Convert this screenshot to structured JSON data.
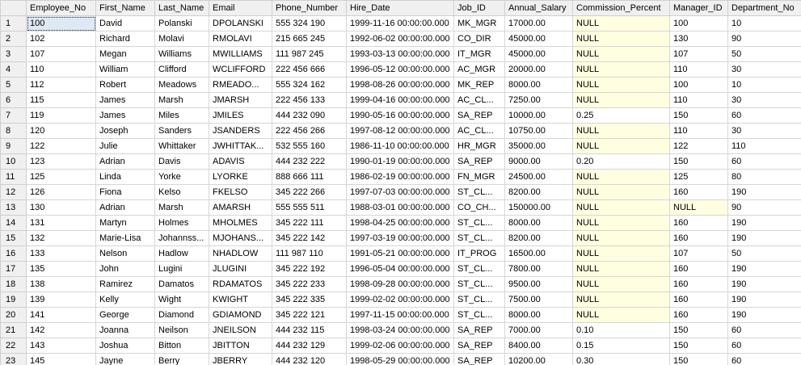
{
  "columns": [
    "Employee_No",
    "First_Name",
    "Last_Name",
    "Email",
    "Phone_Number",
    "Hire_Date",
    "Job_ID",
    "Annual_Salary",
    "Commission_Percent",
    "Manager_ID",
    "Department_No"
  ],
  "null_color": "#fffee0",
  "rows": [
    [
      "1",
      "100",
      "David",
      "Polanski",
      "DPOLANSKI",
      "555 324 190",
      "1999-11-16 00:00:00.000",
      "MK_MGR",
      "17000.00",
      "NULL",
      "100",
      "10"
    ],
    [
      "2",
      "102",
      "Richard",
      "Molavi",
      "RMOLAVI",
      "215 665 245",
      "1992-06-02 00:00:00.000",
      "CO_DIR",
      "45000.00",
      "NULL",
      "130",
      "90"
    ],
    [
      "3",
      "107",
      "Megan",
      "Williams",
      "MWILLIAMS",
      "111 987 245",
      "1993-03-13 00:00:00.000",
      "IT_MGR",
      "45000.00",
      "NULL",
      "107",
      "50"
    ],
    [
      "4",
      "110",
      "William",
      "Clifford",
      "WCLIFFORD",
      "222 456 666",
      "1996-05-12 00:00:00.000",
      "AC_MGR",
      "20000.00",
      "NULL",
      "110",
      "30"
    ],
    [
      "5",
      "112",
      "Robert",
      "Meadows",
      "RMEADO...",
      "555 324 162",
      "1998-08-26 00:00:00.000",
      "MK_REP",
      "8000.00",
      "NULL",
      "100",
      "10"
    ],
    [
      "6",
      "115",
      "James",
      "Marsh",
      "JMARSH",
      "222 456 133",
      "1999-04-16 00:00:00.000",
      "AC_CL...",
      "7250.00",
      "NULL",
      "110",
      "30"
    ],
    [
      "7",
      "119",
      "James",
      "Miles",
      "JMILES",
      "444 232 090",
      "1990-05-16 00:00:00.000",
      "SA_REP",
      "10000.00",
      "0.25",
      "150",
      "60"
    ],
    [
      "8",
      "120",
      "Joseph",
      "Sanders",
      "JSANDERS",
      "222 456 266",
      "1997-08-12 00:00:00.000",
      "AC_CL...",
      "10750.00",
      "NULL",
      "110",
      "30"
    ],
    [
      "9",
      "122",
      "Julie",
      "Whittaker",
      "JWHITTAK...",
      "532 555 160",
      "1986-11-10 00:00:00.000",
      "HR_MGR",
      "35000.00",
      "NULL",
      "122",
      "110"
    ],
    [
      "10",
      "123",
      "Adrian",
      "Davis",
      "ADAVIS",
      "444 232 222",
      "1990-01-19 00:00:00.000",
      "SA_REP",
      "9000.00",
      "0.20",
      "150",
      "60"
    ],
    [
      "11",
      "125",
      "Linda",
      "Yorke",
      "LYORKE",
      "888 666 111",
      "1986-02-19 00:00:00.000",
      "FN_MGR",
      "24500.00",
      "NULL",
      "125",
      "80"
    ],
    [
      "12",
      "126",
      "Fiona",
      "Kelso",
      "FKELSO",
      "345 222 266",
      "1997-07-03 00:00:00.000",
      "ST_CL...",
      "8200.00",
      "NULL",
      "160",
      "190"
    ],
    [
      "13",
      "130",
      "Adrian",
      "Marsh",
      "AMARSH",
      "555 555 511",
      "1988-03-01 00:00:00.000",
      "CO_CH...",
      "150000.00",
      "NULL",
      "NULL",
      "90"
    ],
    [
      "14",
      "131",
      "Martyn",
      "Holmes",
      "MHOLMES",
      "345 222 111",
      "1998-04-25 00:00:00.000",
      "ST_CL...",
      "8000.00",
      "NULL",
      "160",
      "190"
    ],
    [
      "15",
      "132",
      "Marie-Lisa",
      "Johannss...",
      "MJOHANS...",
      "345 222 142",
      "1997-03-19 00:00:00.000",
      "ST_CL...",
      "8200.00",
      "NULL",
      "160",
      "190"
    ],
    [
      "16",
      "133",
      "Nelson",
      "Hadlow",
      "NHADLOW",
      "111 987 110",
      "1991-05-21 00:00:00.000",
      "IT_PROG",
      "16500.00",
      "NULL",
      "107",
      "50"
    ],
    [
      "17",
      "135",
      "John",
      "Lugini",
      "JLUGINI",
      "345 222 192",
      "1996-05-04 00:00:00.000",
      "ST_CL...",
      "7800.00",
      "NULL",
      "160",
      "190"
    ],
    [
      "18",
      "138",
      "Ramirez",
      "Damatos",
      "RDAMATOS",
      "345 222 233",
      "1998-09-28 00:00:00.000",
      "ST_CL...",
      "9500.00",
      "NULL",
      "160",
      "190"
    ],
    [
      "19",
      "139",
      "Kelly",
      "Wight",
      "KWIGHT",
      "345 222 335",
      "1999-02-02 00:00:00.000",
      "ST_CL...",
      "7500.00",
      "NULL",
      "160",
      "190"
    ],
    [
      "20",
      "141",
      "George",
      "Diamond",
      "GDIAMOND",
      "345 222 121",
      "1997-11-15 00:00:00.000",
      "ST_CL...",
      "8000.00",
      "NULL",
      "160",
      "190"
    ],
    [
      "21",
      "142",
      "Joanna",
      "Neilson",
      "JNEILSON",
      "444 232 115",
      "1998-03-24 00:00:00.000",
      "SA_REP",
      "7000.00",
      "0.10",
      "150",
      "60"
    ],
    [
      "22",
      "143",
      "Joshua",
      "Bitton",
      "JBITTON",
      "444 232 129",
      "1999-02-06 00:00:00.000",
      "SA_REP",
      "8400.00",
      "0.15",
      "150",
      "60"
    ],
    [
      "23",
      "145",
      "Jayne",
      "Berry",
      "JBERRY",
      "444 232 120",
      "1998-05-29 00:00:00.000",
      "SA_REP",
      "10200.00",
      "0.30",
      "150",
      "60"
    ]
  ]
}
